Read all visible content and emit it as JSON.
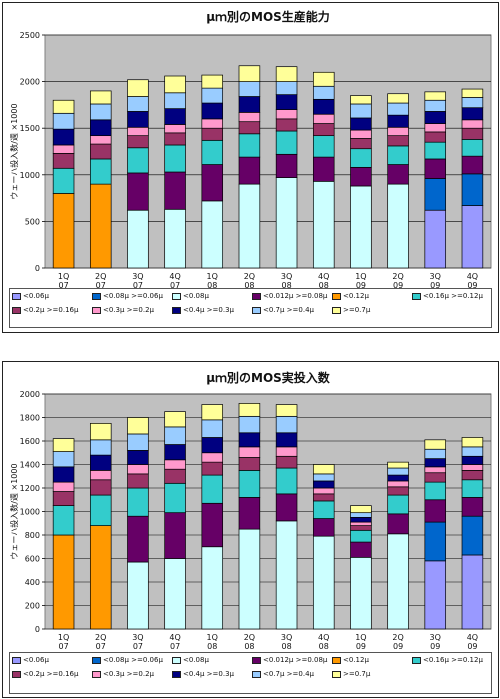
{
  "chart_data": [
    {
      "type": "bar",
      "stacked": true,
      "title": "μｍ別のMOS生産能力",
      "ylabel": "ウェーハ投入数/週 ×1000",
      "ylim": [
        0,
        2500
      ],
      "yticks": [
        0,
        500,
        1000,
        1500,
        2000,
        2500
      ],
      "grid": true,
      "plot_background": "#c0c0c0",
      "legend_position": "bottom",
      "categories": [
        [
          "1Q",
          "07"
        ],
        [
          "2Q",
          "07"
        ],
        [
          "3Q",
          "07"
        ],
        [
          "4Q",
          "07"
        ],
        [
          "1Q",
          "08"
        ],
        [
          "2Q",
          "08"
        ],
        [
          "3Q",
          "08"
        ],
        [
          "4Q",
          "08"
        ],
        [
          "1Q",
          "09"
        ],
        [
          "2Q",
          "09"
        ],
        [
          "3Q",
          "09"
        ],
        [
          "4Q",
          "09"
        ]
      ],
      "series": [
        {
          "name": "<0.06μ",
          "color": "#9999ff",
          "values": [
            0,
            0,
            0,
            0,
            0,
            0,
            0,
            0,
            0,
            0,
            620,
            670
          ]
        },
        {
          "name": "<0.08μ >=0.06μ",
          "color": "#0066cc",
          "values": [
            0,
            0,
            0,
            0,
            0,
            0,
            0,
            0,
            0,
            0,
            340,
            340
          ]
        },
        {
          "name": "<0.08μ",
          "color": "#ccffff",
          "values": [
            0,
            0,
            620,
            630,
            720,
            900,
            970,
            930,
            880,
            900,
            0,
            0
          ]
        },
        {
          "name": "<0.012μ >=0.08μ",
          "color": "#660066",
          "values": [
            0,
            0,
            400,
            400,
            390,
            290,
            250,
            260,
            200,
            210,
            210,
            190
          ]
        },
        {
          "name": "<0.12μ",
          "color": "#ff9900",
          "values": [
            800,
            900,
            0,
            0,
            0,
            0,
            0,
            0,
            0,
            0,
            0,
            0
          ]
        },
        {
          "name": "<0.16μ >=0.12μ",
          "color": "#33cccc",
          "values": [
            270,
            270,
            270,
            290,
            260,
            250,
            250,
            230,
            200,
            200,
            180,
            180
          ]
        },
        {
          "name": "<0.2μ >=0.16μ",
          "color": "#993366",
          "values": [
            160,
            160,
            130,
            130,
            130,
            130,
            130,
            130,
            110,
            110,
            110,
            120
          ]
        },
        {
          "name": "<0.3μ >=0.2μ",
          "color": "#ff99cc",
          "values": [
            90,
            90,
            90,
            90,
            100,
            100,
            100,
            100,
            90,
            90,
            90,
            90
          ]
        },
        {
          "name": "<0.4μ >=0.3μ",
          "color": "#000080",
          "values": [
            170,
            170,
            170,
            170,
            170,
            170,
            160,
            160,
            130,
            130,
            130,
            130
          ]
        },
        {
          "name": "<0.7μ >=0.4μ",
          "color": "#99ccff",
          "values": [
            170,
            170,
            160,
            170,
            160,
            160,
            140,
            140,
            150,
            130,
            120,
            110
          ]
        },
        {
          "name": ">=0.7μ",
          "color": "#ffff99",
          "values": [
            140,
            140,
            180,
            180,
            140,
            170,
            160,
            150,
            90,
            100,
            90,
            90
          ]
        }
      ]
    },
    {
      "type": "bar",
      "stacked": true,
      "title": "μｍ別のMOS実投入数",
      "ylabel": "ウェーハ投入数/週 ×1000",
      "ylim": [
        0,
        2000
      ],
      "yticks": [
        0,
        200,
        400,
        600,
        800,
        1000,
        1200,
        1400,
        1600,
        1800,
        2000
      ],
      "grid": true,
      "plot_background": "#c0c0c0",
      "legend_position": "bottom",
      "categories": [
        [
          "1Q",
          "07"
        ],
        [
          "2Q",
          "07"
        ],
        [
          "3Q",
          "07"
        ],
        [
          "4Q",
          "07"
        ],
        [
          "1Q",
          "08"
        ],
        [
          "2Q",
          "08"
        ],
        [
          "3Q",
          "08"
        ],
        [
          "4Q",
          "08"
        ],
        [
          "1Q",
          "09"
        ],
        [
          "2Q",
          "09"
        ],
        [
          "3Q",
          "09"
        ],
        [
          "4Q",
          "09"
        ]
      ],
      "series": [
        {
          "name": "<0.06μ",
          "color": "#9999ff",
          "values": [
            0,
            0,
            0,
            0,
            0,
            0,
            0,
            0,
            0,
            0,
            580,
            630
          ]
        },
        {
          "name": "<0.08μ >=0.06μ",
          "color": "#0066cc",
          "values": [
            0,
            0,
            0,
            0,
            0,
            0,
            0,
            0,
            0,
            0,
            330,
            330
          ]
        },
        {
          "name": "<0.08μ",
          "color": "#ccffff",
          "values": [
            0,
            0,
            570,
            600,
            700,
            850,
            920,
            790,
            610,
            810,
            0,
            0
          ]
        },
        {
          "name": "<0.012μ >=0.08μ",
          "color": "#660066",
          "values": [
            0,
            0,
            390,
            390,
            370,
            270,
            230,
            150,
            130,
            170,
            190,
            160
          ]
        },
        {
          "name": "<0.12μ",
          "color": "#ff9900",
          "values": [
            800,
            880,
            0,
            0,
            0,
            0,
            0,
            0,
            0,
            0,
            0,
            0
          ]
        },
        {
          "name": "<0.16μ >=0.12μ",
          "color": "#33cccc",
          "values": [
            250,
            260,
            240,
            250,
            240,
            230,
            220,
            150,
            100,
            160,
            150,
            150
          ]
        },
        {
          "name": "<0.2μ >=0.16μ",
          "color": "#993366",
          "values": [
            120,
            130,
            120,
            120,
            110,
            110,
            100,
            60,
            40,
            70,
            80,
            80
          ]
        },
        {
          "name": "<0.3μ >=0.2μ",
          "color": "#ff99cc",
          "values": [
            80,
            80,
            80,
            80,
            80,
            90,
            80,
            50,
            30,
            50,
            50,
            50
          ]
        },
        {
          "name": "<0.4μ >=0.3μ",
          "color": "#000080",
          "values": [
            130,
            130,
            120,
            130,
            130,
            120,
            120,
            60,
            40,
            50,
            70,
            70
          ]
        },
        {
          "name": "<0.7μ >=0.4μ",
          "color": "#99ccff",
          "values": [
            130,
            130,
            140,
            150,
            150,
            140,
            140,
            60,
            40,
            60,
            80,
            80
          ]
        },
        {
          "name": ">=0.7μ",
          "color": "#ffff99",
          "values": [
            110,
            140,
            140,
            130,
            130,
            110,
            100,
            80,
            60,
            50,
            80,
            80
          ]
        }
      ]
    }
  ]
}
